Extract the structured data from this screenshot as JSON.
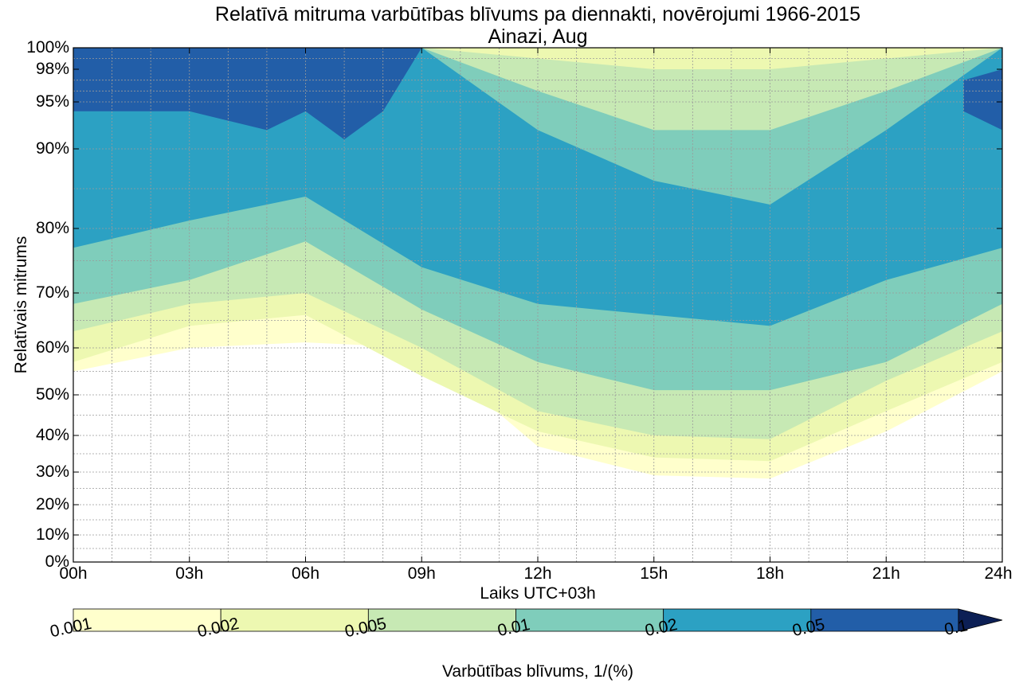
{
  "chart_data": {
    "type": "heatmap",
    "title": "Relatīvā mitruma varbūtības blīvums pa diennakti, novērojumi 1966-2015",
    "subtitle": "Ainazi, Aug",
    "xlabel": "Laiks UTC+03h",
    "ylabel": "Relatīvais mitrums",
    "x_ticks": [
      {
        "label": "00h",
        "hour": 0
      },
      {
        "label": "03h",
        "hour": 3
      },
      {
        "label": "06h",
        "hour": 6
      },
      {
        "label": "09h",
        "hour": 9
      },
      {
        "label": "12h",
        "hour": 12
      },
      {
        "label": "15h",
        "hour": 15
      },
      {
        "label": "18h",
        "hour": 18
      },
      {
        "label": "21h",
        "hour": 21
      },
      {
        "label": "24h",
        "hour": 24
      }
    ],
    "xlim": [
      0,
      24
    ],
    "y_ticks": [
      {
        "label": "0%",
        "value": 0
      },
      {
        "label": "10%",
        "value": 10
      },
      {
        "label": "20%",
        "value": 20
      },
      {
        "label": "30%",
        "value": 30
      },
      {
        "label": "40%",
        "value": 40
      },
      {
        "label": "50%",
        "value": 50
      },
      {
        "label": "60%",
        "value": 60
      },
      {
        "label": "70%",
        "value": 70
      },
      {
        "label": "80%",
        "value": 80
      },
      {
        "label": "90%",
        "value": 90
      },
      {
        "label": "95%",
        "value": 95
      },
      {
        "label": "98%",
        "value": 98
      },
      {
        "label": "100%",
        "value": 100
      }
    ],
    "ylim": [
      0,
      100
    ],
    "grid": true,
    "colorbar": {
      "label": "Varbūtības blīvums, 1/(%)",
      "levels": [
        "0.001",
        "0.002",
        "0.005",
        "0.01",
        "0.02",
        "0.05",
        "0.1"
      ],
      "colors": [
        "#ffffcc",
        "#edf8b1",
        "#c7e9b4",
        "#7fcdbb",
        "#2ca1c3",
        "#225ea8",
        "#0c1f55"
      ],
      "extend": "max"
    },
    "contour_bands": [
      {
        "level": "0.001",
        "color": "#ffffcc",
        "lower": [
          [
            0,
            55
          ],
          [
            3,
            60
          ],
          [
            6,
            61
          ],
          [
            9,
            60
          ],
          [
            12,
            37
          ],
          [
            15,
            29
          ],
          [
            18,
            28
          ],
          [
            21,
            41
          ],
          [
            24,
            55
          ]
        ],
        "upper": [
          [
            0,
            100
          ],
          [
            24,
            100
          ]
        ]
      },
      {
        "level": "0.002",
        "color": "#edf8b1",
        "lower": [
          [
            0,
            57
          ],
          [
            3,
            64
          ],
          [
            6,
            66
          ],
          [
            9,
            54
          ],
          [
            12,
            41
          ],
          [
            15,
            34
          ],
          [
            18,
            33
          ],
          [
            21,
            46
          ],
          [
            24,
            57
          ]
        ],
        "upper": [
          [
            0,
            100
          ],
          [
            24,
            100
          ]
        ]
      },
      {
        "level": "0.005",
        "color": "#c7e9b4",
        "lower": [
          [
            0,
            63
          ],
          [
            3,
            68
          ],
          [
            6,
            70
          ],
          [
            9,
            60
          ],
          [
            12,
            46
          ],
          [
            15,
            40
          ],
          [
            18,
            39
          ],
          [
            21,
            53
          ],
          [
            24,
            63
          ]
        ],
        "upper": [
          [
            0,
            100
          ],
          [
            9,
            100
          ],
          [
            12,
            99
          ],
          [
            15,
            98
          ],
          [
            18,
            98
          ],
          [
            21,
            99
          ],
          [
            24,
            100
          ]
        ]
      },
      {
        "level": "0.01",
        "color": "#7fcdbb",
        "lower": [
          [
            0,
            68
          ],
          [
            3,
            72
          ],
          [
            6,
            78
          ],
          [
            9,
            67
          ],
          [
            12,
            57
          ],
          [
            15,
            51
          ],
          [
            18,
            51
          ],
          [
            21,
            57
          ],
          [
            24,
            68
          ]
        ],
        "upper": [
          [
            0,
            100
          ],
          [
            9,
            100
          ],
          [
            12,
            96
          ],
          [
            15,
            92
          ],
          [
            18,
            92
          ],
          [
            21,
            96
          ],
          [
            24,
            100
          ]
        ]
      },
      {
        "level": "0.02",
        "color": "#2ca1c3",
        "lower": [
          [
            0,
            77
          ],
          [
            3,
            81
          ],
          [
            6,
            84
          ],
          [
            9,
            74
          ],
          [
            12,
            68
          ],
          [
            15,
            66
          ],
          [
            18,
            64
          ],
          [
            21,
            72
          ],
          [
            24,
            77
          ]
        ],
        "upper": [
          [
            0,
            100
          ],
          [
            9,
            100
          ],
          [
            12,
            92
          ],
          [
            15,
            86
          ],
          [
            18,
            83
          ],
          [
            21,
            92
          ],
          [
            24,
            100
          ]
        ]
      },
      {
        "level": "0.05",
        "color": "#225ea8",
        "lower": [
          [
            0,
            94
          ],
          [
            3,
            94
          ],
          [
            5,
            92
          ],
          [
            6,
            94
          ],
          [
            7,
            91
          ],
          [
            8,
            94
          ],
          [
            9,
            100
          ]
        ],
        "upper": [
          [
            0,
            100
          ],
          [
            9,
            100
          ]
        ]
      },
      {
        "level": "0.05",
        "color": "#225ea8",
        "lower": [
          [
            23,
            94
          ],
          [
            24,
            92
          ]
        ],
        "upper": [
          [
            23,
            97
          ],
          [
            24,
            98
          ]
        ]
      }
    ]
  }
}
